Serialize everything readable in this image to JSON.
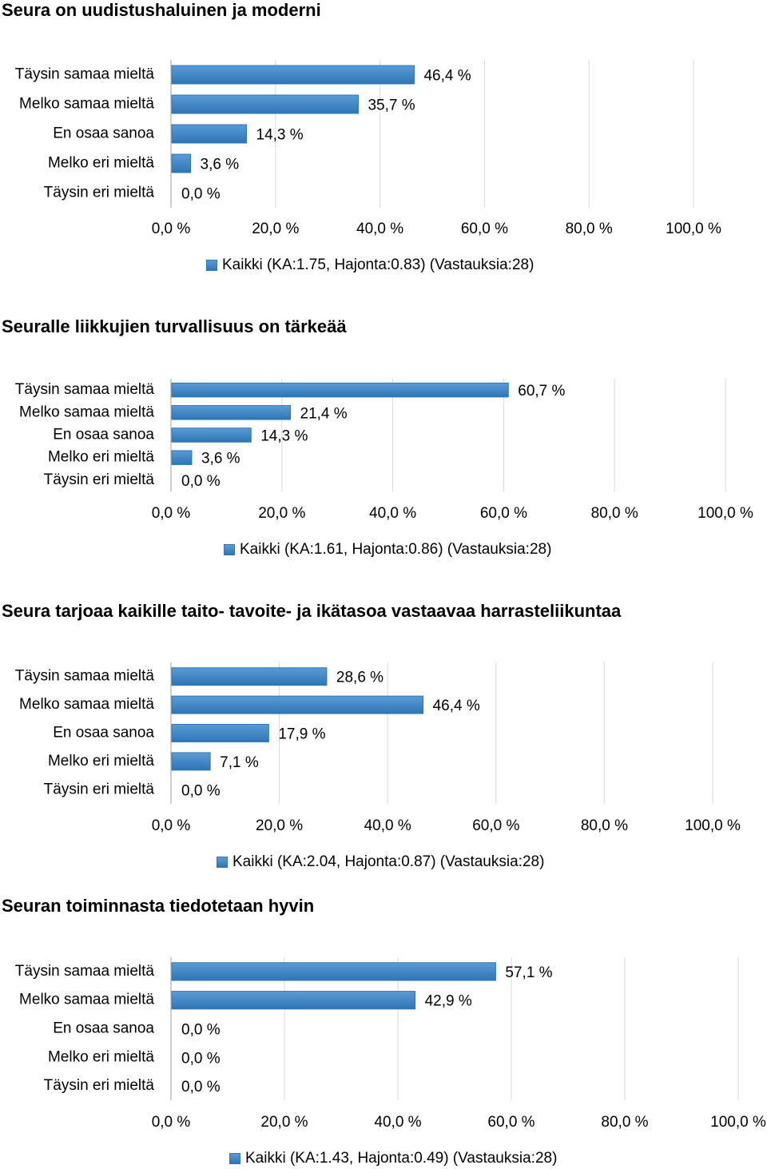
{
  "chart_data": [
    {
      "type": "bar",
      "orientation": "horizontal",
      "title": "Seura on uudistushaluinen ja moderni",
      "categories": [
        "Täysin samaa mieltä",
        "Melko samaa mieltä",
        "En osaa sanoa",
        "Melko eri mieltä",
        "Täysin eri mieltä"
      ],
      "series": [
        {
          "name": "Kaikki (KA:1.75, Hajonta:0.83) (Vastauksia:28)",
          "values": [
            46.4,
            35.7,
            14.3,
            3.6,
            0.0
          ]
        }
      ],
      "value_labels": [
        "46,4 %",
        "35,7 %",
        "14,3 %",
        "3,6 %",
        "0,0 %"
      ],
      "xlim": [
        0,
        100
      ],
      "tick_labels": [
        "0,0 %",
        "20,0 %",
        "40,0 %",
        "60,0 %",
        "80,0 %",
        "100,0 %"
      ],
      "grid": true,
      "legend_position": "bottom"
    },
    {
      "type": "bar",
      "orientation": "horizontal",
      "title": "Seuralle liikkujien turvallisuus on tärkeää",
      "categories": [
        "Täysin samaa mieltä",
        "Melko samaa mieltä",
        "En osaa sanoa",
        "Melko eri mieltä",
        "Täysin eri mieltä"
      ],
      "series": [
        {
          "name": "Kaikki (KA:1.61, Hajonta:0.86) (Vastauksia:28)",
          "values": [
            60.7,
            21.4,
            14.3,
            3.6,
            0.0
          ]
        }
      ],
      "value_labels": [
        "60,7 %",
        "21,4 %",
        "14,3 %",
        "3,6 %",
        "0,0 %"
      ],
      "xlim": [
        0,
        100
      ],
      "tick_labels": [
        "0,0 %",
        "20,0 %",
        "40,0 %",
        "60,0 %",
        "80,0 %",
        "100,0 %"
      ],
      "grid": true,
      "legend_position": "bottom"
    },
    {
      "type": "bar",
      "orientation": "horizontal",
      "title": "Seura tarjoaa kaikille taito- tavoite- ja ikätasoa vastaavaa harrasteliikuntaa",
      "categories": [
        "Täysin samaa mieltä",
        "Melko samaa mieltä",
        "En osaa sanoa",
        "Melko eri mieltä",
        "Täysin eri mieltä"
      ],
      "series": [
        {
          "name": "Kaikki (KA:2.04, Hajonta:0.87) (Vastauksia:28)",
          "values": [
            28.6,
            46.4,
            17.9,
            7.1,
            0.0
          ]
        }
      ],
      "value_labels": [
        "28,6 %",
        "46,4 %",
        "17,9 %",
        "7,1 %",
        "0,0 %"
      ],
      "xlim": [
        0,
        100
      ],
      "tick_labels": [
        "0,0 %",
        "20,0 %",
        "40,0 %",
        "60,0 %",
        "80,0 %",
        "100,0 %"
      ],
      "grid": true,
      "legend_position": "bottom"
    },
    {
      "type": "bar",
      "orientation": "horizontal",
      "title": "Seuran toiminnasta tiedotetaan hyvin",
      "categories": [
        "Täysin samaa mieltä",
        "Melko samaa mieltä",
        "En osaa sanoa",
        "Melko eri mieltä",
        "Täysin eri mieltä"
      ],
      "series": [
        {
          "name": "Kaikki (KA:1.43, Hajonta:0.49) (Vastauksia:28)",
          "values": [
            57.1,
            42.9,
            0.0,
            0.0,
            0.0
          ]
        }
      ],
      "value_labels": [
        "57,1 %",
        "42,9 %",
        "0,0 %",
        "0,0 %",
        "0,0 %"
      ],
      "xlim": [
        0,
        100
      ],
      "tick_labels": [
        "0,0 %",
        "20,0 %",
        "40,0 %",
        "60,0 %",
        "80,0 %",
        "100,0 %"
      ],
      "grid": true,
      "legend_position": "bottom"
    }
  ],
  "colors": {
    "bar_fill_top": "#5b9bd5",
    "bar_fill_bottom": "#2e75b6",
    "bar_stroke": "#2e75b6",
    "grid": "#d9d9d9",
    "axis": "#bfbfbf"
  }
}
